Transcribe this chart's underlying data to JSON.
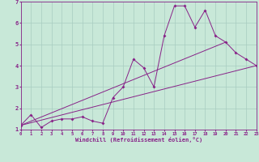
{
  "xlabel": "Windchill (Refroidissement éolien,°C)",
  "bg_color": "#c8e8d8",
  "grid_color": "#a8ccc0",
  "line_color": "#882288",
  "xmin": 0,
  "xmax": 23,
  "ymin": 1,
  "ymax": 7,
  "yticks": [
    1,
    2,
    3,
    4,
    5,
    6,
    7
  ],
  "xticks": [
    0,
    1,
    2,
    3,
    4,
    5,
    6,
    7,
    8,
    9,
    10,
    11,
    12,
    13,
    14,
    15,
    16,
    17,
    18,
    19,
    20,
    21,
    22,
    23
  ],
  "data_x": [
    0,
    1,
    2,
    3,
    4,
    5,
    6,
    7,
    8,
    9,
    10,
    11,
    12,
    13,
    14,
    15,
    16,
    17,
    18,
    19,
    20,
    21,
    22,
    23
  ],
  "data_y1": [
    1.2,
    1.7,
    1.1,
    1.4,
    1.5,
    1.5,
    1.6,
    1.4,
    1.3,
    2.5,
    3.0,
    4.3,
    3.9,
    3.0,
    5.4,
    6.8,
    6.8,
    5.8,
    6.6,
    5.4,
    5.1,
    4.6,
    4.3,
    4.0
  ],
  "line2_x": [
    0,
    23
  ],
  "line2_y": [
    1.2,
    4.0
  ],
  "line3_x": [
    0,
    20
  ],
  "line3_y": [
    1.2,
    5.1
  ]
}
